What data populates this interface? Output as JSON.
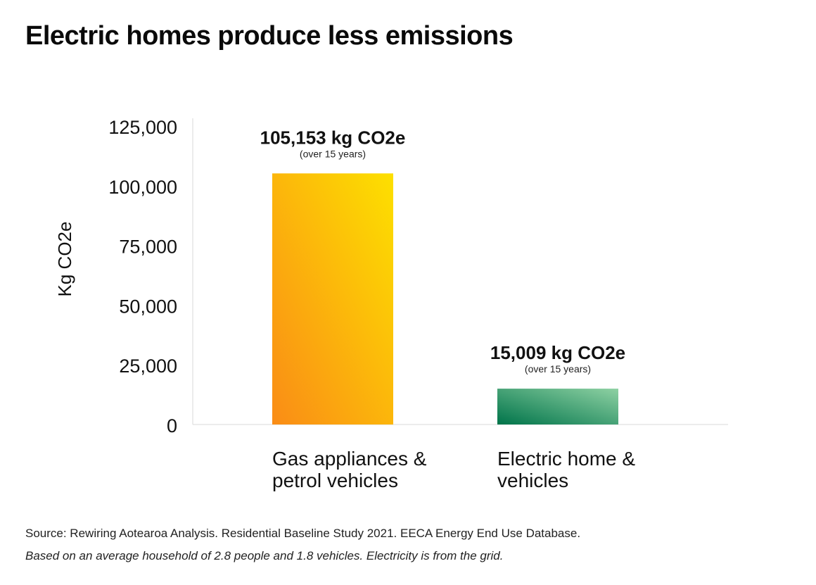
{
  "title": "Electric homes produce less emissions",
  "chart_data": {
    "type": "bar",
    "categories": [
      "Gas appliances & petrol vehicles",
      "Electric home & vehicles"
    ],
    "category_lines": [
      [
        "Gas appliances &",
        "petrol vehicles"
      ],
      [
        "Electric home &",
        "vehicles"
      ]
    ],
    "values": [
      105153,
      15009
    ],
    "data_labels": [
      "105,153 kg CO2e",
      "15,009 kg CO2e"
    ],
    "data_sublabels": [
      "(over 15 years)",
      "(over 15 years)"
    ],
    "ylabel": "Kg CO2e",
    "xlabel": "",
    "ylim": [
      0,
      125000
    ],
    "yticks": [
      0,
      25000,
      50000,
      75000,
      100000,
      125000
    ],
    "ytick_labels": [
      "0",
      "25,000",
      "50,000",
      "75,000",
      "100,000",
      "125,000"
    ],
    "grid": false,
    "legend": "none",
    "colors": [
      {
        "from": "#fa8c16",
        "to": "#fde000"
      },
      {
        "from": "#00744a",
        "to": "#8ed1a3"
      }
    ]
  },
  "footer": {
    "source": "Source: Rewiring Aotearoa Analysis. Residential Baseline Study 2021. EECA Energy End Use Database.",
    "note": "Based on an average household of 2.8 people and 1.8 vehicles. Electricity is from the grid."
  }
}
